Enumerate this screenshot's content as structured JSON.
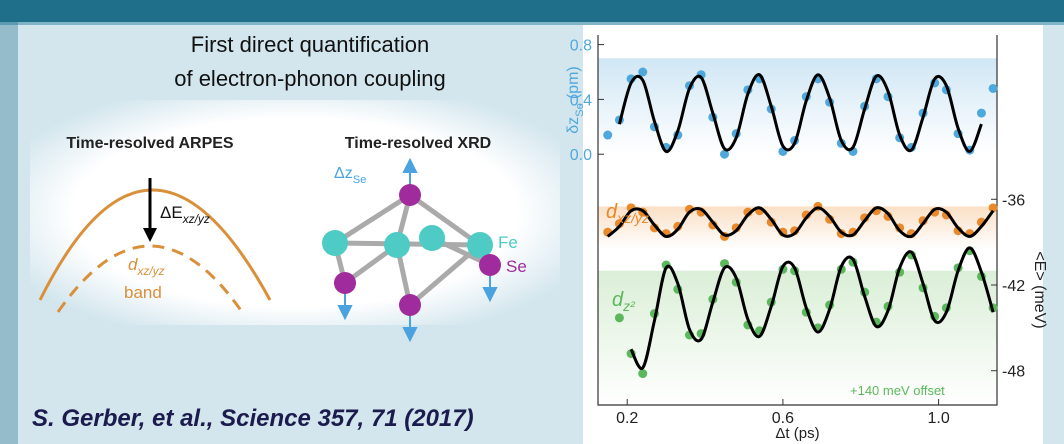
{
  "intro": [
    "First direct quantification",
    "of electron-phonon coupling"
  ],
  "diagram": {
    "arpes_title": "Time-resolved ARPES",
    "xrd_title": "Time-resolved XRD",
    "delta_e": {
      "base": "ΔE",
      "sub": "xz/yz"
    },
    "band_label": {
      "base": "d",
      "sub": "xz/yz",
      "line2": "band"
    },
    "delta_z": {
      "base": "Δz",
      "sub": "Se"
    },
    "fe": "Fe",
    "se": "Se"
  },
  "citation": "S. Gerber, et al., Science 357, 71 (2017)",
  "chart_data": {
    "type": "line",
    "xlabel": "Δt (ps)",
    "ylabel": {
      "base": "δz",
      "sub": "Se",
      "unit": "(pm)"
    },
    "y2label": "<E> (meV)",
    "xlim": [
      0.125,
      1.15
    ],
    "xticks": [
      0.2,
      0.6,
      {
        "value": 1,
        "label": "1.0"
      }
    ],
    "ylim": [
      -1.83,
      0.87
    ],
    "yticks": [
      {
        "value": 0,
        "label": "0.0"
      },
      0.4,
      0.8
    ],
    "y2lim": [
      -50.4,
      -24.5
    ],
    "y2ticks": [
      -48,
      -42,
      -36
    ],
    "x": [
      0.15,
      0.18,
      0.21,
      0.24,
      0.27,
      0.3,
      0.33,
      0.36,
      0.39,
      0.42,
      0.45,
      0.48,
      0.51,
      0.54,
      0.57,
      0.6,
      0.63,
      0.66,
      0.69,
      0.72,
      0.75,
      0.78,
      0.81,
      0.84,
      0.87,
      0.9,
      0.93,
      0.96,
      0.99,
      1.02,
      1.05,
      1.08,
      1.11,
      1.14
    ],
    "series": [
      {
        "mode": "markers",
        "axis": "y",
        "color": "#4fa8dc",
        "values": [
          0.14,
          0.25,
          0.55,
          0.6,
          0.2,
          0.05,
          0.14,
          0.5,
          0.58,
          0.27,
          0.0,
          0.15,
          0.47,
          0.55,
          0.33,
          0.02,
          0.1,
          0.42,
          0.55,
          0.38,
          0.08,
          0.02,
          0.35,
          0.55,
          0.42,
          0.12,
          0.05,
          0.3,
          0.52,
          0.47,
          0.15,
          0.03,
          0.3,
          0.48
        ]
      },
      {
        "mode": "lines",
        "axis": "y",
        "color": "#000000",
        "values": [
          null,
          0.22,
          0.52,
          0.54,
          0.24,
          0.02,
          0.17,
          0.48,
          0.56,
          0.3,
          0.04,
          0.12,
          0.44,
          0.58,
          0.35,
          0.06,
          0.08,
          0.39,
          0.58,
          0.41,
          0.1,
          0.05,
          0.33,
          0.57,
          0.46,
          0.14,
          0.03,
          0.27,
          0.55,
          0.5,
          0.19,
          0.02,
          0.22,
          null
        ]
      },
      {
        "mode": "markers",
        "axis": "y2",
        "color": "#e8892b",
        "values": [
          -38.3,
          -37.7,
          -36.6,
          -36.9,
          -38.0,
          -38.4,
          -37.9,
          -36.7,
          -36.9,
          -37.8,
          -38.6,
          -38.0,
          -36.9,
          -36.8,
          -37.6,
          -38.3,
          -38.2,
          -37.1,
          -36.5,
          -37.4,
          -38.4,
          -38.3,
          -37.3,
          -36.8,
          -37.2,
          -38.0,
          -38.4,
          -37.5,
          -36.9,
          -37.1,
          -38.2,
          -38.4,
          -37.6,
          -36.6
        ]
      },
      {
        "mode": "lines",
        "axis": "y2",
        "color": "#000000",
        "values": [
          -38.6,
          -37.9,
          -36.8,
          -36.8,
          -37.8,
          -38.6,
          -38.1,
          -36.9,
          -36.7,
          -37.6,
          -38.5,
          -38.2,
          -37.1,
          -36.6,
          -37.4,
          -38.5,
          -38.4,
          -37.3,
          -36.6,
          -37.2,
          -38.3,
          -38.5,
          -37.5,
          -36.6,
          -37.0,
          -38.2,
          -38.6,
          -37.7,
          -36.7,
          -36.9,
          -38.0,
          -38.6,
          -37.9,
          -36.8
        ]
      },
      {
        "mode": "markers",
        "axis": "y2",
        "color": "#5cb85c",
        "values": [
          null,
          -44.3,
          -46.8,
          -48.2,
          -44.0,
          -40.6,
          -42.3,
          -45.5,
          -45.4,
          -43.0,
          -40.5,
          -41.8,
          -44.8,
          -45.2,
          -43.2,
          -40.9,
          -41.0,
          -43.9,
          -45.0,
          -43.4,
          -40.9,
          -40.4,
          -42.5,
          -44.6,
          -43.5,
          -41.1,
          -39.9,
          -42.2,
          -44.2,
          -43.6,
          -40.8,
          -39.6,
          -41.4,
          -43.6
        ]
      },
      {
        "mode": "lines",
        "axis": "y2",
        "color": "#000000",
        "values": [
          null,
          null,
          -46.5,
          -47.8,
          -44.5,
          -40.8,
          -41.9,
          -45.1,
          -45.8,
          -43.2,
          -40.8,
          -41.5,
          -44.4,
          -45.6,
          -43.5,
          -40.7,
          -40.8,
          -43.6,
          -45.3,
          -43.7,
          -40.7,
          -40.2,
          -42.8,
          -44.9,
          -43.8,
          -40.8,
          -39.7,
          -41.9,
          -44.5,
          -43.9,
          -41.0,
          -39.4,
          -41.1,
          -43.9
        ]
      }
    ],
    "annotations": [
      {
        "base": "d",
        "sub": "xz/yz",
        "color": "#e8892b"
      },
      {
        "base": "d",
        "sub": "z²",
        "color": "#5cb85c"
      },
      {
        "text": "+140 meV offset",
        "color": "#5cb85c"
      }
    ]
  }
}
